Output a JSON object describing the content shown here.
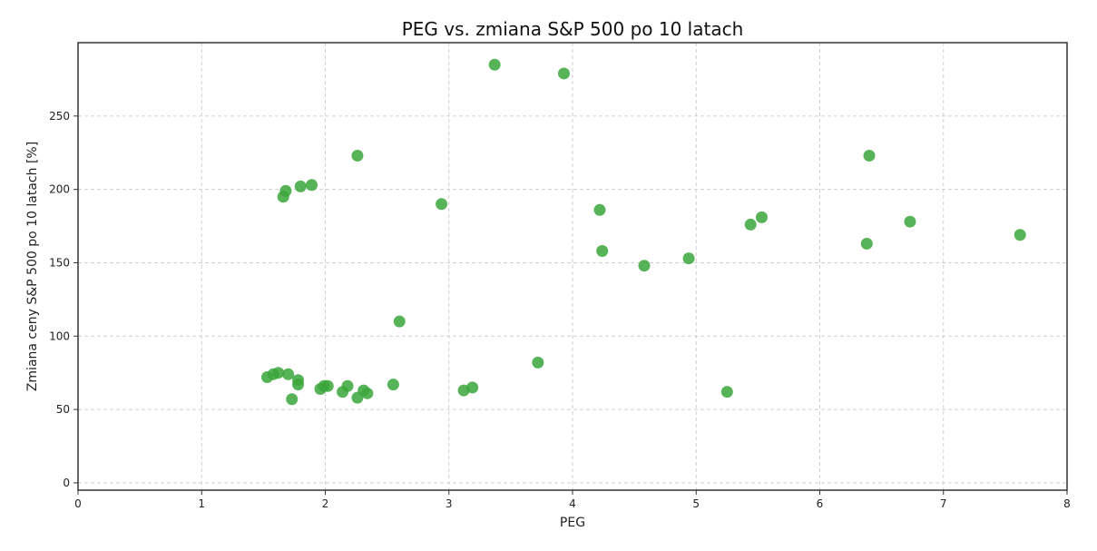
{
  "chart_data": {
    "type": "scatter",
    "title": "PEG vs. zmiana S&P 500 po 10 latach",
    "xlabel": "PEG",
    "ylabel": "Zmiana ceny S&P 500 po 10 latach [%]",
    "xlim": [
      0,
      8
    ],
    "ylim": [
      -5,
      300
    ],
    "x_ticks": [
      0,
      1,
      2,
      3,
      4,
      5,
      6,
      7,
      8
    ],
    "x_tick_labels": [
      "0",
      "1",
      "2",
      "3",
      "4",
      "5",
      "6",
      "7",
      "8"
    ],
    "y_ticks": [
      0,
      50,
      100,
      150,
      200,
      250
    ],
    "y_tick_labels": [
      "0",
      "50",
      "100",
      "150",
      "200",
      "250"
    ],
    "grid": true,
    "marker_color": "#3aa63a",
    "points": [
      {
        "x": 1.53,
        "y": 72
      },
      {
        "x": 1.58,
        "y": 74
      },
      {
        "x": 1.62,
        "y": 75
      },
      {
        "x": 1.7,
        "y": 74
      },
      {
        "x": 1.73,
        "y": 57
      },
      {
        "x": 1.78,
        "y": 70
      },
      {
        "x": 1.78,
        "y": 67
      },
      {
        "x": 1.66,
        "y": 195
      },
      {
        "x": 1.68,
        "y": 199
      },
      {
        "x": 1.8,
        "y": 202
      },
      {
        "x": 1.89,
        "y": 203
      },
      {
        "x": 1.96,
        "y": 64
      },
      {
        "x": 1.99,
        "y": 66
      },
      {
        "x": 2.02,
        "y": 66
      },
      {
        "x": 2.14,
        "y": 62
      },
      {
        "x": 2.18,
        "y": 66
      },
      {
        "x": 2.26,
        "y": 58
      },
      {
        "x": 2.31,
        "y": 63
      },
      {
        "x": 2.34,
        "y": 61
      },
      {
        "x": 2.26,
        "y": 223
      },
      {
        "x": 2.55,
        "y": 67
      },
      {
        "x": 2.6,
        "y": 110
      },
      {
        "x": 2.94,
        "y": 190
      },
      {
        "x": 3.12,
        "y": 63
      },
      {
        "x": 3.19,
        "y": 65
      },
      {
        "x": 3.37,
        "y": 285
      },
      {
        "x": 3.72,
        "y": 82
      },
      {
        "x": 3.93,
        "y": 279
      },
      {
        "x": 4.22,
        "y": 186
      },
      {
        "x": 4.24,
        "y": 158
      },
      {
        "x": 4.58,
        "y": 148
      },
      {
        "x": 4.94,
        "y": 153
      },
      {
        "x": 5.25,
        "y": 62
      },
      {
        "x": 5.44,
        "y": 176
      },
      {
        "x": 5.53,
        "y": 181
      },
      {
        "x": 6.38,
        "y": 163
      },
      {
        "x": 6.4,
        "y": 223
      },
      {
        "x": 6.73,
        "y": 178
      },
      {
        "x": 7.62,
        "y": 169
      }
    ]
  }
}
